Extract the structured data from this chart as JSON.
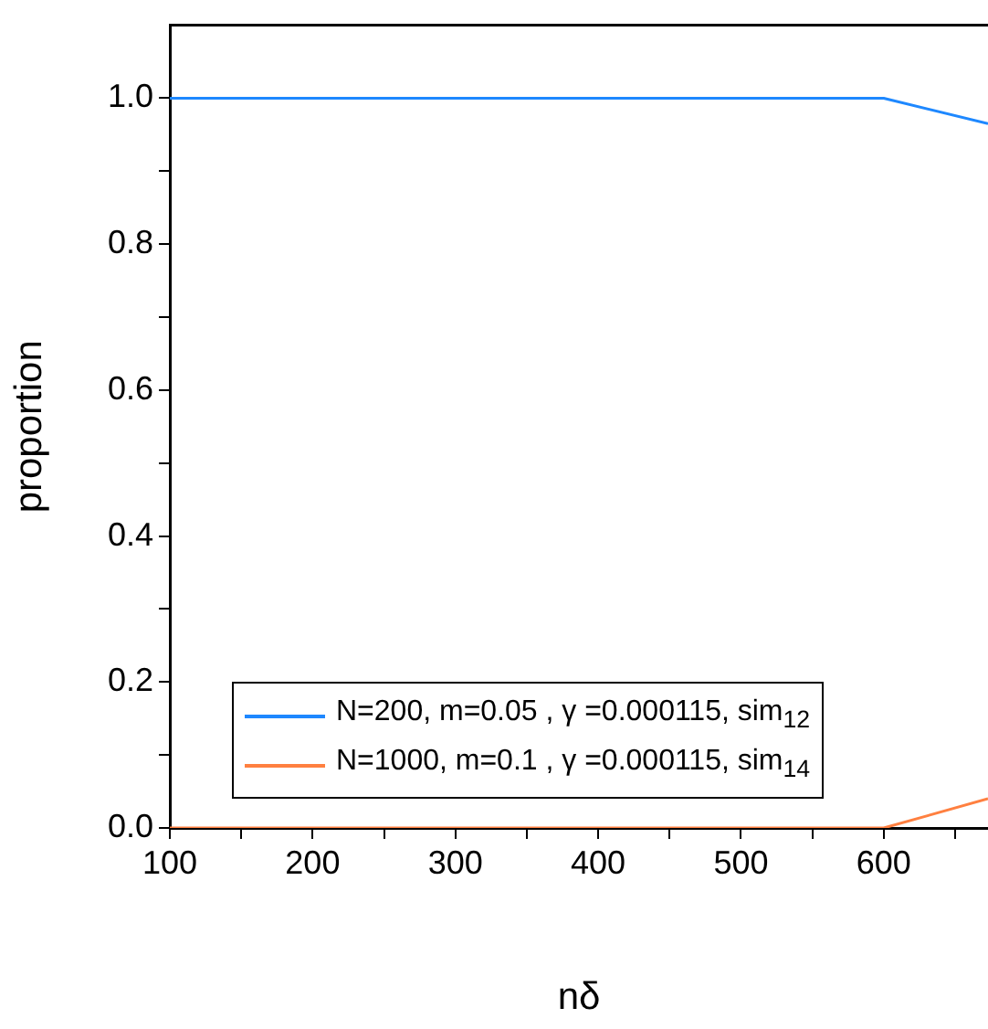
{
  "chart_data": {
    "type": "line",
    "xlabel": "nδ",
    "ylabel": "proportion",
    "xlim": [
      100,
      673
    ],
    "ylim": [
      0,
      1.1
    ],
    "xticks": [
      100,
      {
        "value": 150,
        "label": null
      },
      200,
      {
        "value": 250,
        "label": null
      },
      300,
      {
        "value": 350,
        "label": null
      },
      400,
      {
        "value": 450,
        "label": null
      },
      500,
      {
        "value": 550,
        "label": null
      },
      600,
      {
        "value": 650,
        "label": null
      }
    ],
    "yticks": [
      "0.0",
      {
        "value": 0.1,
        "label": null
      },
      {
        "value": 0.2,
        "label": "0.2"
      },
      {
        "value": 0.3,
        "label": null
      },
      {
        "value": 0.4,
        "label": "0.4"
      },
      {
        "value": 0.5,
        "label": null
      },
      {
        "value": 0.6,
        "label": "0.6"
      },
      {
        "value": 0.7,
        "label": null
      },
      {
        "value": 0.8,
        "label": "0.8"
      },
      {
        "value": 0.9,
        "label": null
      },
      {
        "value": 1,
        "label": "1.0"
      }
    ],
    "x": [
      100,
      200,
      300,
      400,
      500,
      600,
      673
    ],
    "series": [
      {
        "name": "N=200, m=0.05 , γ =0.000115, sim$_{12}$",
        "color": "#1e88ff",
        "values": [
          1,
          1,
          1,
          1,
          1,
          1,
          0.965
        ]
      },
      {
        "name": "N=1000, m=0.1 , γ =0.000115, sim$_{14}$",
        "color": "#ff8040",
        "values": [
          0,
          0,
          0,
          0,
          0,
          0,
          0.04
        ]
      }
    ],
    "grid": false,
    "legend": "bottom",
    "marker": "none",
    "line_style": "solid"
  }
}
